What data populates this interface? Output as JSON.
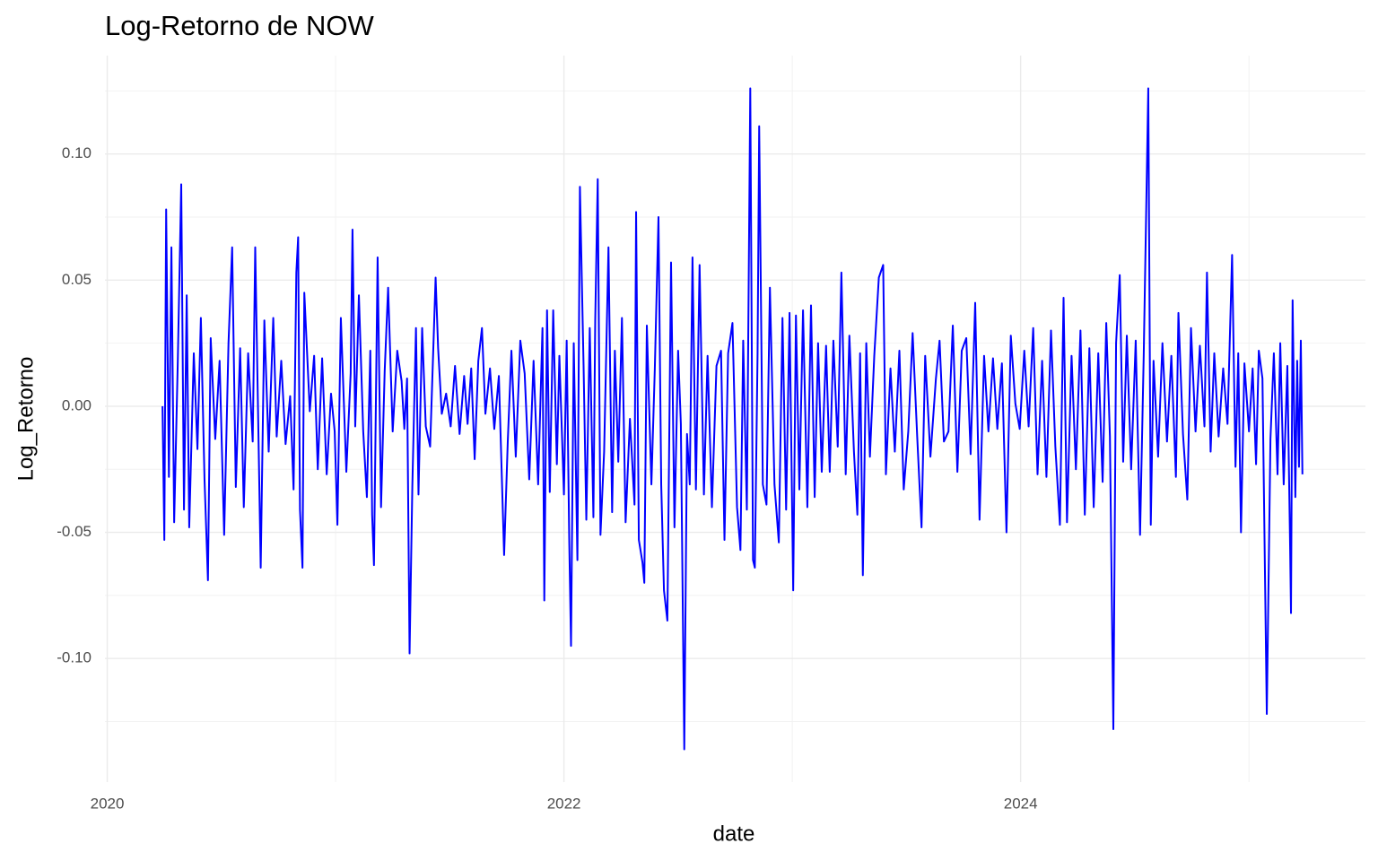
{
  "chart_data": {
    "type": "line",
    "title": "Log-Retorno de NOW",
    "x_label": "date",
    "y_label": "Log_Retorno",
    "xlim": [
      2019.99,
      2025.51
    ],
    "xticks": [
      2020,
      2022,
      2024
    ],
    "x_minor_ticks": [
      2021,
      2023,
      2025
    ],
    "ylim": [
      -0.149,
      0.139
    ],
    "yticks": [
      {
        "value": -0.1,
        "label": "-0.10"
      },
      -0.05,
      {
        "value": 0,
        "label": "0.00"
      },
      0.05,
      {
        "value": 0.1,
        "label": "0.10"
      }
    ],
    "y_minor_ticks": [
      -0.125,
      -0.075,
      -0.025,
      0.025,
      0.075,
      0.125
    ],
    "grid": true,
    "series": [
      {
        "color": "#0000ff",
        "x": [
          2020.242,
          2020.25,
          2020.258,
          2020.27,
          2020.281,
          2020.293,
          2020.309,
          2020.324,
          2020.336,
          2020.348,
          2020.359,
          2020.379,
          2020.395,
          2020.41,
          2020.426,
          2020.441,
          2020.453,
          2020.473,
          2020.492,
          2020.512,
          2020.531,
          2020.547,
          2020.563,
          2020.582,
          2020.598,
          2020.617,
          2020.637,
          2020.648,
          2020.664,
          2020.672,
          2020.688,
          2020.707,
          2020.727,
          2020.742,
          2020.762,
          2020.781,
          2020.801,
          2020.816,
          2020.828,
          2020.836,
          2020.844,
          2020.855,
          2020.863,
          2020.887,
          2020.906,
          2020.922,
          2020.941,
          2020.961,
          2020.98,
          2020.996,
          2021.008,
          2021.023,
          2021.047,
          2021.066,
          2021.074,
          2021.086,
          2021.102,
          2021.121,
          2021.137,
          2021.152,
          2021.16,
          2021.168,
          2021.184,
          2021.199,
          2021.215,
          2021.23,
          2021.25,
          2021.27,
          2021.289,
          2021.301,
          2021.313,
          2021.324,
          2021.336,
          2021.352,
          2021.363,
          2021.379,
          2021.395,
          2021.414,
          2021.438,
          2021.449,
          2021.465,
          2021.484,
          2021.504,
          2021.523,
          2021.543,
          2021.563,
          2021.578,
          2021.594,
          2021.609,
          2021.625,
          2021.641,
          2021.656,
          2021.676,
          2021.695,
          2021.715,
          2021.738,
          2021.754,
          2021.77,
          2021.789,
          2021.809,
          2021.828,
          2021.848,
          2021.867,
          2021.887,
          2021.906,
          2021.914,
          2021.926,
          2021.938,
          2021.953,
          2021.969,
          2021.98,
          2022.0,
          2022.012,
          2022.023,
          2022.031,
          2022.043,
          2022.059,
          2022.07,
          2022.086,
          2022.098,
          2022.113,
          2022.129,
          2022.137,
          2022.148,
          2022.16,
          2022.176,
          2022.195,
          2022.211,
          2022.223,
          2022.238,
          2022.254,
          2022.27,
          2022.289,
          2022.309,
          2022.316,
          2022.328,
          2022.344,
          2022.352,
          2022.363,
          2022.383,
          2022.398,
          2022.414,
          2022.426,
          2022.438,
          2022.453,
          2022.469,
          2022.484,
          2022.5,
          2022.512,
          2022.527,
          2022.539,
          2022.551,
          2022.563,
          2022.578,
          2022.594,
          2022.613,
          2022.629,
          2022.648,
          2022.668,
          2022.688,
          2022.703,
          2022.719,
          2022.738,
          2022.758,
          2022.773,
          2022.785,
          2022.801,
          2022.816,
          2022.828,
          2022.836,
          2022.848,
          2022.855,
          2022.871,
          2022.887,
          2022.902,
          2022.922,
          2022.941,
          2022.957,
          2022.973,
          2022.988,
          2023.004,
          2023.016,
          2023.031,
          2023.047,
          2023.066,
          2023.082,
          2023.098,
          2023.113,
          2023.129,
          2023.148,
          2023.164,
          2023.18,
          2023.199,
          2023.215,
          2023.234,
          2023.25,
          2023.27,
          2023.285,
          2023.297,
          2023.309,
          2023.324,
          2023.34,
          2023.359,
          2023.379,
          2023.398,
          2023.41,
          2023.43,
          2023.449,
          2023.469,
          2023.488,
          2023.508,
          2023.527,
          2023.547,
          2023.566,
          2023.582,
          2023.605,
          2023.629,
          2023.645,
          2023.664,
          2023.684,
          2023.703,
          2023.723,
          2023.742,
          2023.762,
          2023.781,
          2023.801,
          2023.82,
          2023.84,
          2023.859,
          2023.879,
          2023.898,
          2023.918,
          2023.938,
          2023.957,
          2023.977,
          2023.996,
          2024.016,
          2024.035,
          2024.055,
          2024.074,
          2024.094,
          2024.113,
          2024.133,
          2024.152,
          2024.172,
          2024.188,
          2024.203,
          2024.223,
          2024.242,
          2024.262,
          2024.281,
          2024.301,
          2024.32,
          2024.34,
          2024.359,
          2024.375,
          2024.391,
          2024.406,
          2024.418,
          2024.434,
          2024.449,
          2024.465,
          2024.484,
          2024.504,
          2024.523,
          2024.539,
          2024.559,
          2024.57,
          2024.582,
          2024.602,
          2024.621,
          2024.641,
          2024.66,
          2024.68,
          2024.691,
          2024.711,
          2024.73,
          2024.746,
          2024.766,
          2024.785,
          2024.805,
          2024.816,
          2024.832,
          2024.848,
          2024.867,
          2024.887,
          2024.906,
          2024.926,
          2024.941,
          2024.953,
          2024.965,
          2024.98,
          2025.0,
          2025.016,
          2025.031,
          2025.043,
          2025.059,
          2025.078,
          2025.094,
          2025.109,
          2025.125,
          2025.137,
          2025.152,
          2025.168,
          2025.18,
          2025.184,
          2025.191,
          2025.203,
          2025.211,
          2025.219,
          2025.227,
          2025.234
        ],
        "values": [
          0.0,
          -0.053,
          0.078,
          -0.028,
          0.063,
          -0.046,
          0.018,
          0.088,
          -0.041,
          0.044,
          -0.048,
          0.021,
          -0.017,
          0.035,
          -0.029,
          -0.069,
          0.027,
          -0.013,
          0.018,
          -0.051,
          0.025,
          0.063,
          -0.032,
          0.023,
          -0.04,
          0.021,
          -0.014,
          0.063,
          -0.021,
          -0.064,
          0.034,
          -0.018,
          0.035,
          -0.012,
          0.018,
          -0.015,
          0.004,
          -0.033,
          0.053,
          0.067,
          -0.041,
          -0.064,
          0.045,
          -0.002,
          0.02,
          -0.025,
          0.019,
          -0.027,
          0.005,
          -0.01,
          -0.047,
          0.035,
          -0.026,
          0.013,
          0.07,
          -0.008,
          0.044,
          -0.01,
          -0.036,
          0.022,
          -0.043,
          -0.063,
          0.059,
          -0.04,
          0.014,
          0.047,
          -0.01,
          0.022,
          0.01,
          -0.009,
          0.011,
          -0.098,
          -0.032,
          0.031,
          -0.035,
          0.031,
          -0.008,
          -0.016,
          0.051,
          0.023,
          -0.003,
          0.005,
          -0.008,
          0.016,
          -0.011,
          0.012,
          -0.007,
          0.015,
          -0.021,
          0.018,
          0.031,
          -0.003,
          0.015,
          -0.009,
          0.012,
          -0.059,
          -0.014,
          0.022,
          -0.02,
          0.026,
          0.013,
          -0.029,
          0.018,
          -0.031,
          0.031,
          -0.077,
          0.038,
          -0.034,
          0.038,
          -0.023,
          0.02,
          -0.035,
          0.026,
          -0.052,
          -0.095,
          0.025,
          -0.061,
          0.087,
          0.016,
          -0.045,
          0.031,
          -0.044,
          0.034,
          0.09,
          -0.051,
          -0.018,
          0.063,
          -0.042,
          0.022,
          -0.022,
          0.035,
          -0.046,
          -0.005,
          -0.039,
          0.077,
          -0.053,
          -0.062,
          -0.07,
          0.032,
          -0.031,
          0.015,
          0.075,
          -0.031,
          -0.073,
          -0.085,
          0.057,
          -0.048,
          0.022,
          -0.007,
          -0.136,
          -0.011,
          -0.031,
          0.059,
          -0.033,
          0.056,
          -0.035,
          0.02,
          -0.04,
          0.016,
          0.022,
          -0.053,
          0.021,
          0.033,
          -0.04,
          -0.057,
          0.026,
          -0.041,
          0.126,
          -0.061,
          -0.064,
          0.021,
          0.111,
          -0.031,
          -0.039,
          0.047,
          -0.031,
          -0.054,
          0.035,
          -0.041,
          0.037,
          -0.073,
          0.036,
          -0.033,
          0.038,
          -0.04,
          0.04,
          -0.036,
          0.025,
          -0.026,
          0.024,
          -0.026,
          0.026,
          -0.016,
          0.053,
          -0.027,
          0.028,
          -0.018,
          -0.043,
          0.021,
          -0.067,
          0.025,
          -0.02,
          0.02,
          0.051,
          0.056,
          -0.027,
          0.015,
          -0.018,
          0.022,
          -0.033,
          -0.01,
          0.029,
          -0.012,
          -0.048,
          0.02,
          -0.02,
          0.011,
          0.026,
          -0.014,
          -0.01,
          0.032,
          -0.026,
          0.022,
          0.027,
          -0.019,
          0.041,
          -0.045,
          0.02,
          -0.01,
          0.019,
          -0.009,
          0.017,
          -0.05,
          0.028,
          0.001,
          -0.009,
          0.022,
          -0.008,
          0.031,
          -0.027,
          0.018,
          -0.028,
          0.03,
          -0.016,
          -0.047,
          0.043,
          -0.046,
          0.02,
          -0.025,
          0.03,
          -0.043,
          0.023,
          -0.04,
          0.021,
          -0.03,
          0.033,
          -0.012,
          -0.128,
          0.025,
          0.052,
          -0.022,
          0.028,
          -0.025,
          0.026,
          -0.051,
          0.02,
          0.126,
          -0.047,
          0.018,
          -0.02,
          0.025,
          -0.014,
          0.02,
          -0.028,
          0.037,
          -0.011,
          -0.037,
          0.031,
          -0.01,
          0.024,
          -0.008,
          0.053,
          -0.018,
          0.021,
          -0.012,
          0.015,
          -0.007,
          0.06,
          -0.024,
          0.021,
          -0.05,
          0.017,
          -0.01,
          0.015,
          -0.023,
          0.022,
          0.011,
          -0.122,
          -0.013,
          0.021,
          -0.027,
          0.025,
          -0.031,
          0.016,
          -0.055,
          -0.082,
          0.042,
          -0.036,
          0.018,
          -0.024,
          0.026,
          -0.027
        ]
      }
    ]
  }
}
